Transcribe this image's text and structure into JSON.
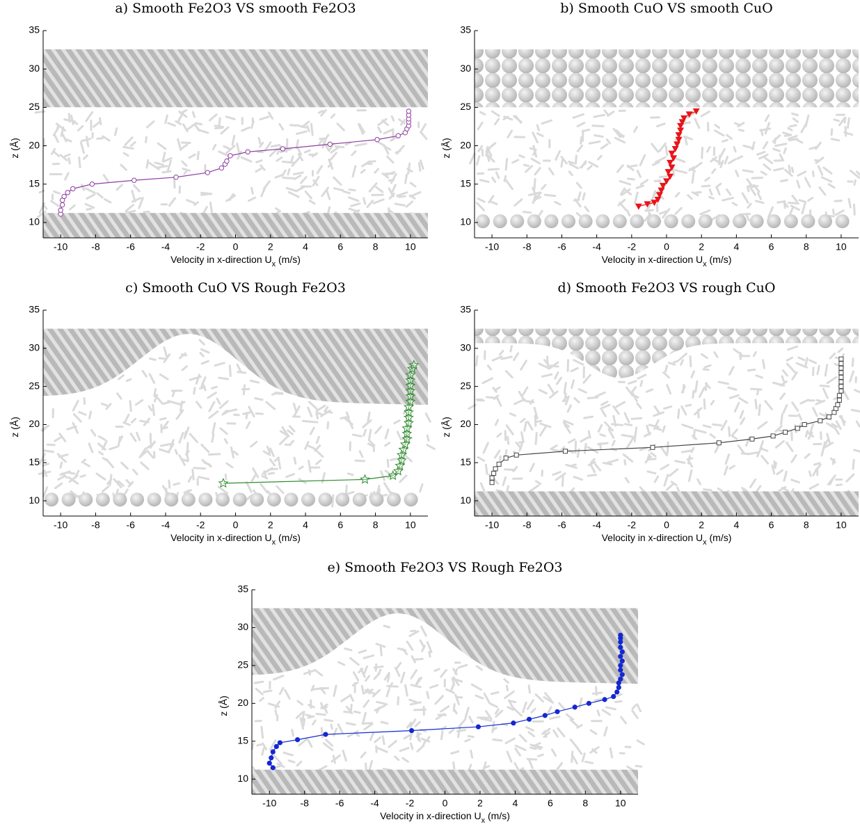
{
  "chart_data": [
    {
      "type": "line",
      "title": "a) Smooth Fe2O3 VS smooth Fe2O3",
      "marker": "circle-open",
      "color": "#8e3ea0",
      "xlabel": [
        "Velocity in x-direction U",
        "x",
        " (m/s)"
      ],
      "ylabel": "z (Å)",
      "x": [
        -10,
        -10,
        -9.9,
        -9.9,
        -9.8,
        -9.6,
        -9.3,
        -8.2,
        -5.8,
        -3.4,
        -1.6,
        -0.8,
        -0.6,
        -0.5,
        -0.3,
        0.7,
        2.7,
        5.4,
        8.1,
        9.3,
        9.7,
        9.8,
        9.9,
        9.9,
        9.9,
        9.9,
        9.9
      ],
      "values": [
        11.1,
        11.6,
        12.3,
        12.9,
        13.4,
        13.9,
        14.4,
        15,
        15.5,
        15.9,
        16.5,
        17.1,
        17.6,
        18,
        18.7,
        19.2,
        19.6,
        20.2,
        20.8,
        21.3,
        21.7,
        22.2,
        22.6,
        23.1,
        23.5,
        24,
        24.5
      ],
      "xlim": [
        -11,
        11
      ],
      "ylim": [
        8,
        35
      ],
      "xticks": [
        -10,
        -8,
        -6,
        -4,
        -2,
        0,
        2,
        4,
        6,
        8,
        10
      ],
      "yticks": [
        10,
        15,
        20,
        25,
        30,
        35
      ]
    },
    {
      "type": "line",
      "title": "b) Smooth CuO VS smooth CuO",
      "marker": "triangle-down",
      "color": "#e8141a",
      "xlabel": [
        "Velocity in x-direction U",
        "x",
        " (m/s)"
      ],
      "ylabel": "z (Å)",
      "x": [
        -1.6,
        -1.1,
        -0.7,
        -0.5,
        -0.4,
        -0.3,
        -0.2,
        0,
        0.2,
        0.1,
        0.3,
        0.2,
        0.4,
        0.3,
        0.5,
        0.6,
        0.7,
        0.7,
        0.8,
        0.8,
        0.9,
        1.0,
        1.3,
        1.7
      ],
      "values": [
        12.1,
        12.4,
        12.6,
        13,
        13.6,
        14.2,
        14.8,
        15.4,
        16,
        16.6,
        17.2,
        17.8,
        18.4,
        19,
        19.6,
        20.2,
        20.8,
        21.4,
        22,
        22.6,
        23.1,
        23.6,
        24.1,
        24.5
      ],
      "xlim": [
        -11,
        11
      ],
      "ylim": [
        8,
        35
      ],
      "xticks": [
        -10,
        -8,
        -6,
        -4,
        -2,
        0,
        2,
        4,
        6,
        8,
        10
      ],
      "yticks": [
        10,
        15,
        20,
        25,
        30,
        35
      ]
    },
    {
      "type": "line",
      "title": "c) Smooth CuO VS Rough Fe2O3",
      "marker": "star-open",
      "color": "#2e8b2e",
      "xlabel": [
        "Velocity in x-direction U",
        "x",
        " (m/s)"
      ],
      "ylabel": "z (Å)",
      "x": [
        -0.7,
        7.4,
        9,
        9.3,
        9.4,
        9.5,
        9.5,
        9.6,
        9.7,
        9.8,
        9.8,
        9.8,
        9.9,
        9.9,
        9.9,
        9.9,
        10,
        10,
        10,
        10,
        10,
        10,
        10.1,
        10.2
      ],
      "values": [
        12.3,
        12.8,
        13.3,
        13.9,
        14.6,
        15.3,
        16,
        16.7,
        17.4,
        18.1,
        18.8,
        19.5,
        20.2,
        20.9,
        21.6,
        22.3,
        23,
        23.7,
        24.4,
        25.1,
        25.8,
        26.5,
        27.3,
        27.8
      ],
      "xlim": [
        -11,
        11
      ],
      "ylim": [
        8,
        35
      ],
      "xticks": [
        -10,
        -8,
        -6,
        -4,
        -2,
        0,
        2,
        4,
        6,
        8,
        10
      ],
      "yticks": [
        10,
        15,
        20,
        25,
        30,
        35
      ]
    },
    {
      "type": "line",
      "title": "d) Smooth Fe2O3 VS rough CuO",
      "marker": "square-open",
      "color": "#444444",
      "xlabel": [
        "Velocity in x-direction U",
        "x",
        " (m/s)"
      ],
      "ylabel": "z (Å)",
      "x": [
        -10,
        -10,
        -9.9,
        -9.8,
        -9.6,
        -9.2,
        -8.6,
        -5.8,
        -0.8,
        3,
        4.9,
        6.1,
        6.8,
        7.5,
        7.9,
        8.8,
        9.3,
        9.6,
        9.7,
        9.8,
        9.9,
        9.9,
        10,
        10,
        10,
        10,
        10,
        10,
        10,
        10
      ],
      "values": [
        12.4,
        13,
        13.6,
        14.2,
        14.8,
        15.6,
        16,
        16.5,
        17,
        17.6,
        18.1,
        18.5,
        19,
        19.5,
        20,
        20.5,
        21,
        21.6,
        22.1,
        22.6,
        23.2,
        23.8,
        24.4,
        25,
        25.6,
        26.2,
        26.8,
        27.4,
        28,
        28.6
      ],
      "xlim": [
        -11,
        11
      ],
      "ylim": [
        8,
        35
      ],
      "xticks": [
        -10,
        -8,
        -6,
        -4,
        -2,
        0,
        2,
        4,
        6,
        8,
        10
      ],
      "yticks": [
        10,
        15,
        20,
        25,
        30,
        35
      ]
    },
    {
      "type": "line",
      "title": "e) Smooth Fe2O3 VS Rough Fe2O3",
      "marker": "circle-filled",
      "color": "#1428d0",
      "xlabel": [
        "Velocity in x-direction U",
        "x",
        " (m/s)"
      ],
      "ylabel": "z (Å)",
      "x": [
        -9.8,
        -10,
        -9.9,
        -9.8,
        -9.6,
        -9.4,
        -8.4,
        -6.8,
        -1.9,
        1.9,
        3.9,
        4.8,
        5.7,
        6.4,
        7.4,
        8.2,
        9.1,
        9.6,
        9.8,
        9.9,
        9.9,
        10,
        10.1,
        10,
        10,
        10.1,
        10,
        10.1,
        10,
        10,
        10,
        10
      ],
      "values": [
        11.5,
        12.1,
        12.8,
        13.6,
        14.3,
        14.8,
        15.2,
        15.9,
        16.4,
        16.9,
        17.4,
        17.9,
        18.4,
        18.9,
        19.5,
        20,
        20.5,
        20.9,
        21.5,
        22.1,
        22.7,
        23.2,
        23.8,
        24.4,
        25,
        25.6,
        26.2,
        26.8,
        27.4,
        28.1,
        28.6,
        29
      ],
      "xlim": [
        -11,
        11
      ],
      "ylim": [
        8,
        35
      ],
      "xticks": [
        -10,
        -8,
        -6,
        -4,
        -2,
        0,
        2,
        4,
        6,
        8,
        10
      ],
      "yticks": [
        10,
        15,
        20,
        25,
        30,
        35
      ]
    }
  ]
}
